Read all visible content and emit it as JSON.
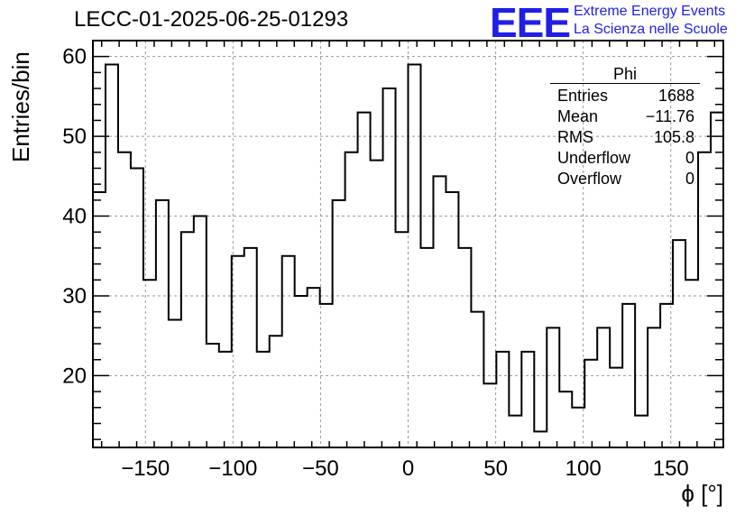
{
  "title": "LECC-01-2025-06-25-01293",
  "logo": {
    "mark": "EEE",
    "line1": "Extreme Energy Events",
    "line2": "La Scienza nelle Scuole",
    "color": "#1f1fe6"
  },
  "stats": {
    "name": "Phi",
    "rows": [
      {
        "label": "Entries",
        "value": "1688"
      },
      {
        "label": "Mean",
        "value": "−11.76"
      },
      {
        "label": "RMS",
        "value": "105.8"
      },
      {
        "label": "Underflow",
        "value": "0"
      },
      {
        "label": "Overflow",
        "value": "0"
      }
    ]
  },
  "chart_data": {
    "type": "bar",
    "style": "step-histogram",
    "title": "LECC-01-2025-06-25-01293",
    "xlabel": "ϕ [°]",
    "ylabel": "Entries/bin",
    "xlim": [
      -180,
      180
    ],
    "ylim": [
      11,
      62
    ],
    "grid": true,
    "x_ticks": [
      -150,
      -100,
      -50,
      0,
      50,
      100,
      150
    ],
    "x_tick_labels": [
      "−150",
      "−100",
      "−50",
      "0",
      "50",
      "100",
      "150"
    ],
    "y_ticks": [
      20,
      30,
      40,
      50,
      60
    ],
    "y_tick_labels": [
      "20",
      "30",
      "40",
      "50",
      "60"
    ],
    "bin_width": 7.2,
    "values": [
      43,
      59,
      48,
      46,
      32,
      42,
      27,
      38,
      40,
      24,
      23,
      35,
      36,
      23,
      25,
      35,
      30,
      31,
      29,
      42,
      48,
      53,
      47,
      56,
      38,
      59,
      36,
      45,
      43,
      36,
      28,
      19,
      23,
      15,
      23,
      13,
      26,
      18,
      16,
      22,
      26,
      21,
      29,
      15,
      26,
      29,
      37,
      32,
      48,
      53
    ]
  }
}
